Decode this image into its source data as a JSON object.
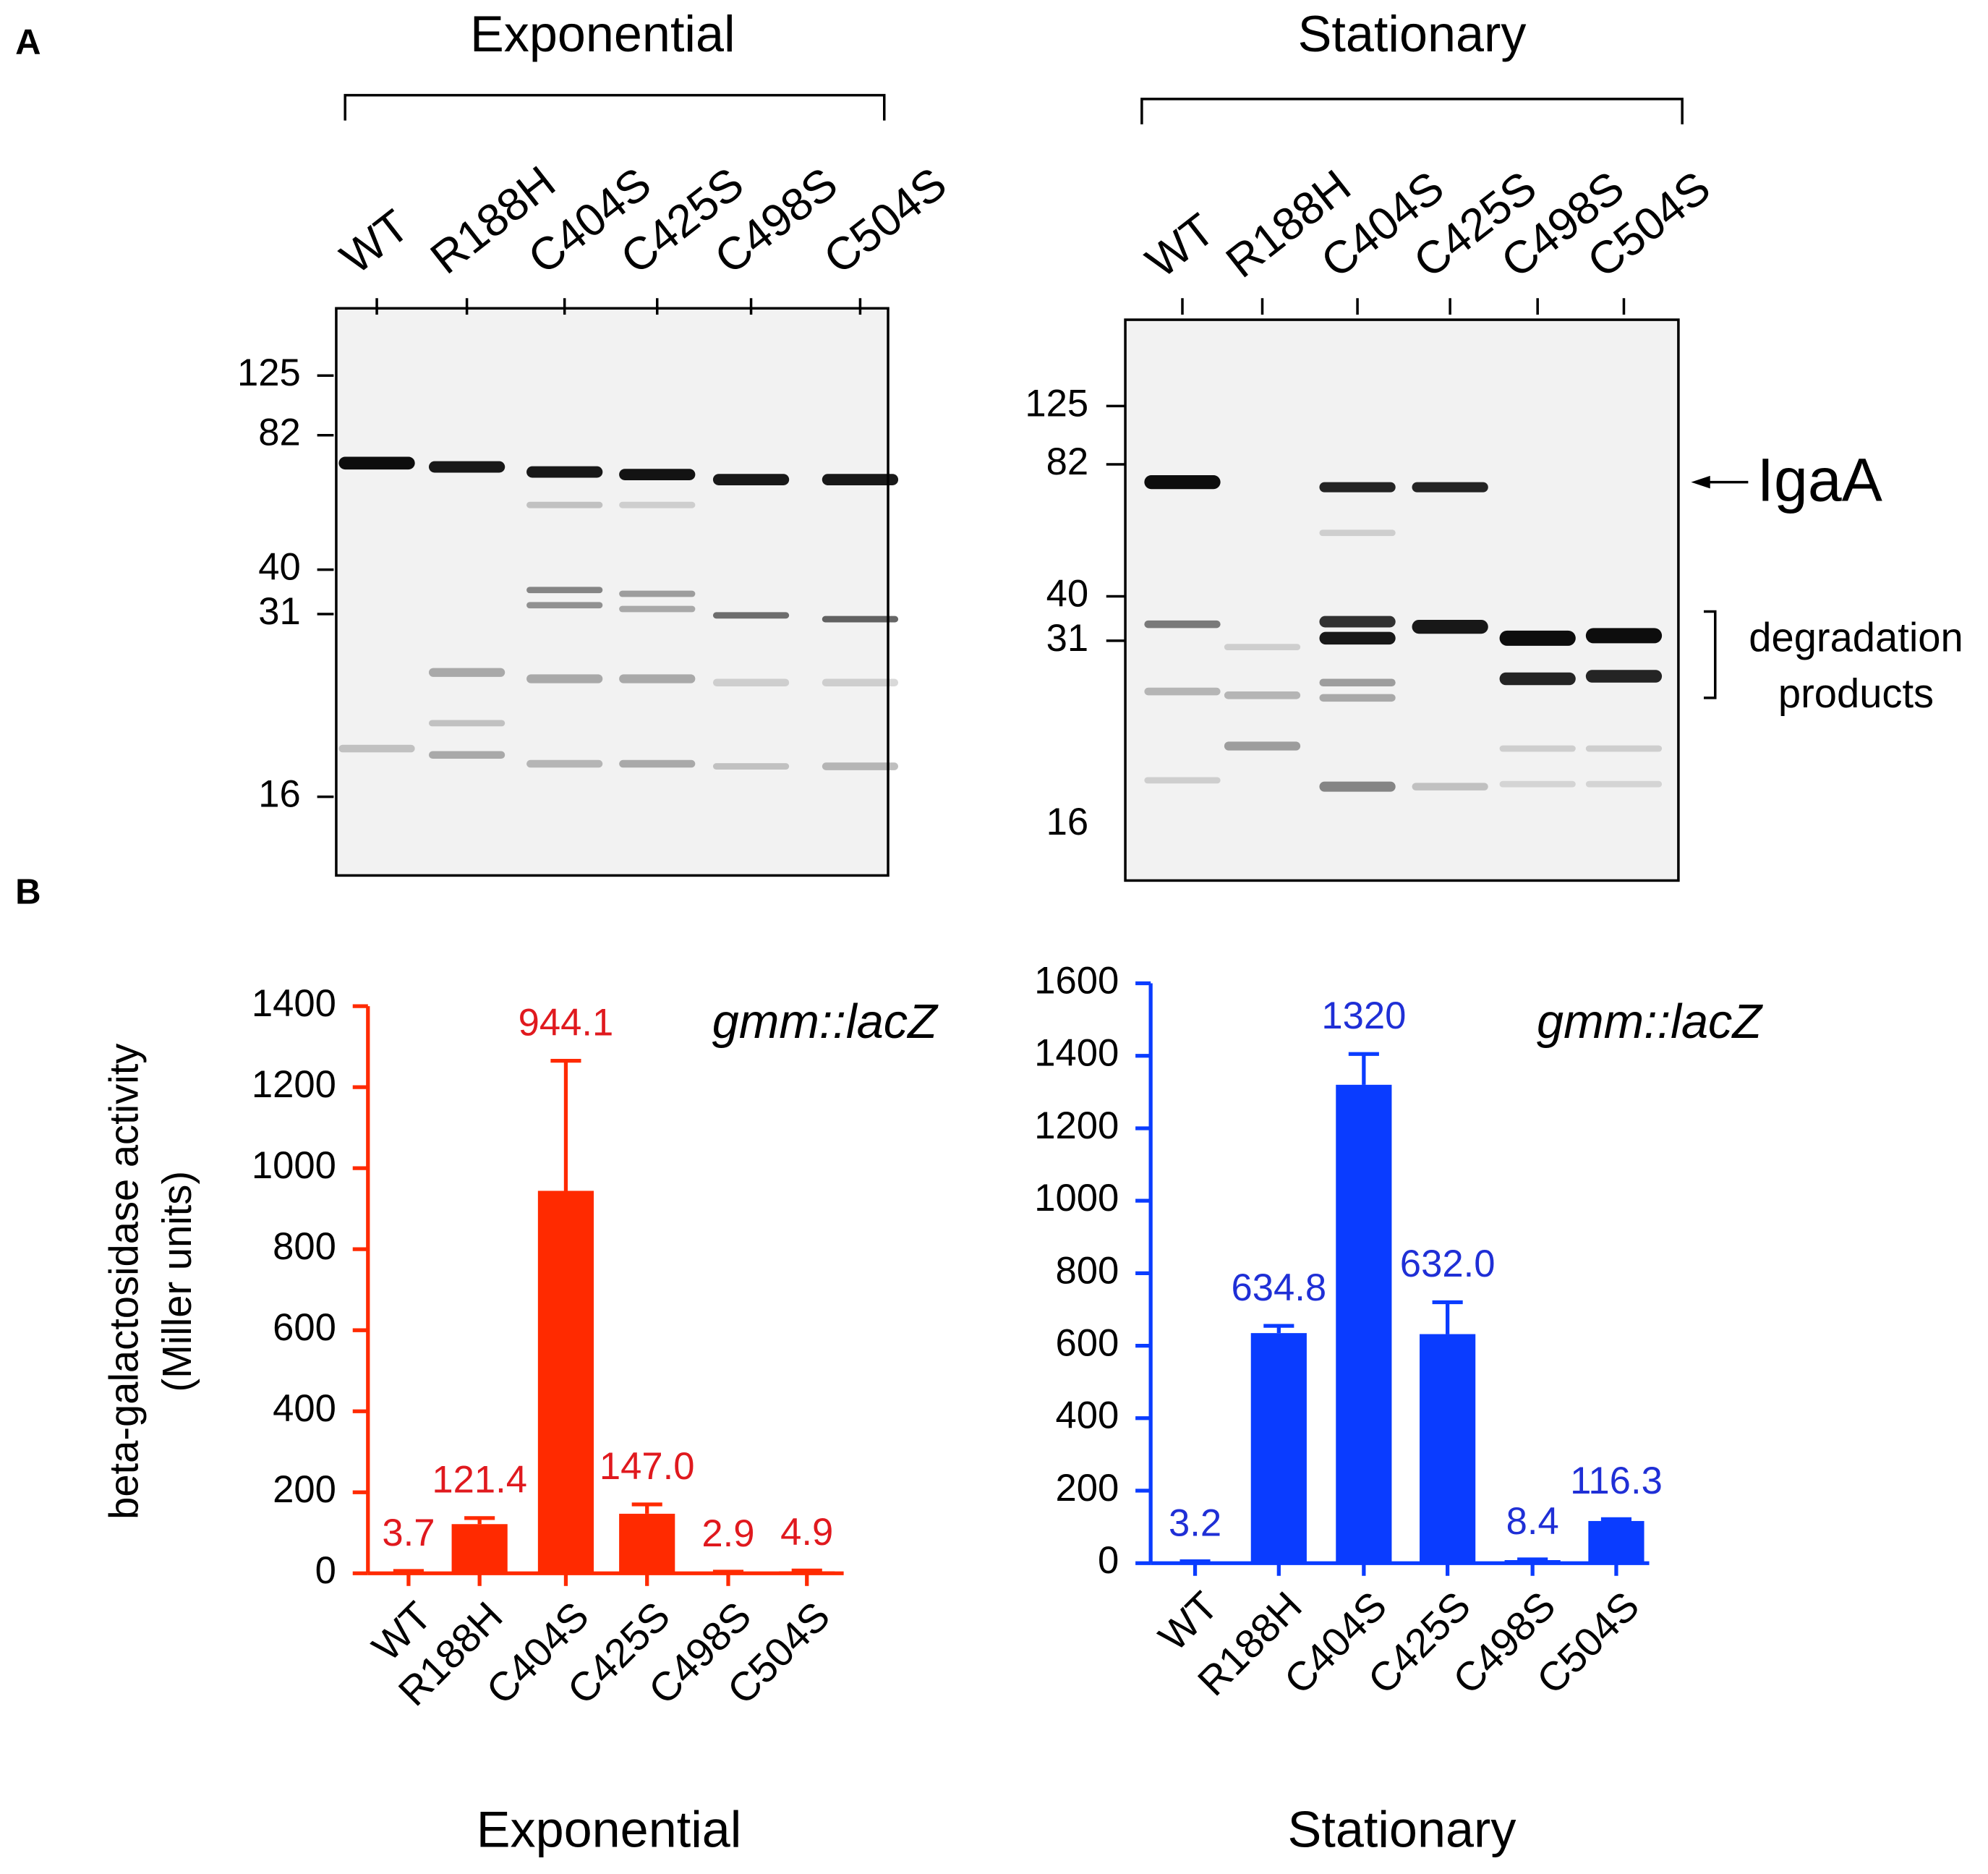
{
  "panel_labels": [
    "A",
    "B"
  ],
  "gels": [
    {
      "title": "Exponential",
      "lanes": [
        "WT",
        "R188H",
        "C404S",
        "C425S",
        "C498S",
        "C504S"
      ],
      "markers": [
        125,
        82,
        40,
        31,
        16
      ]
    },
    {
      "title": "Stationary",
      "lanes": [
        "WT",
        "R188H",
        "C404S",
        "C425S",
        "C498S",
        "C504S"
      ],
      "markers": [
        125,
        82,
        40,
        31,
        16
      ],
      "arrow_label": "IgaA",
      "bracket_label": [
        "degradation",
        "products"
      ]
    }
  ],
  "chart_data": [
    {
      "type": "bar",
      "title": "Exponential",
      "annotation": "gmm::lacZ",
      "ylabel": [
        "beta-galactosidase activity",
        "(Miller units)"
      ],
      "categories": [
        "WT",
        "R188H",
        "C404S",
        "C425S",
        "C498S",
        "C504S"
      ],
      "values": [
        3.7,
        121.4,
        944.1,
        147.0,
        2.9,
        4.9
      ],
      "value_labels": [
        "3.7",
        "121.4",
        "944.1",
        "147.0",
        "2.9",
        "4.9"
      ],
      "errors": [
        2,
        15,
        321,
        23,
        1,
        2
      ],
      "color": "#ff2a00",
      "label_color": "#e0191e",
      "ylim": [
        0,
        1400
      ],
      "yticks": [
        0,
        200,
        400,
        600,
        800,
        1000,
        1200,
        1400
      ]
    },
    {
      "type": "bar",
      "title": "Stationary",
      "annotation": "gmm::lacZ",
      "categories": [
        "WT",
        "R188H",
        "C404S",
        "C425S",
        "C498S",
        "C504S"
      ],
      "values": [
        3.2,
        634.8,
        1320,
        632.0,
        8.4,
        116.3
      ],
      "value_labels": [
        "3.2",
        "634.8",
        "1320",
        "632.0",
        "8.4",
        "116.3"
      ],
      "errors": [
        2,
        20,
        85,
        88,
        2,
        5
      ],
      "color": "#0a3cff",
      "label_color": "#1f2fd6",
      "ylim": [
        0,
        1600
      ],
      "yticks": [
        0,
        200,
        400,
        600,
        800,
        1000,
        1200,
        1400,
        1600
      ]
    }
  ]
}
